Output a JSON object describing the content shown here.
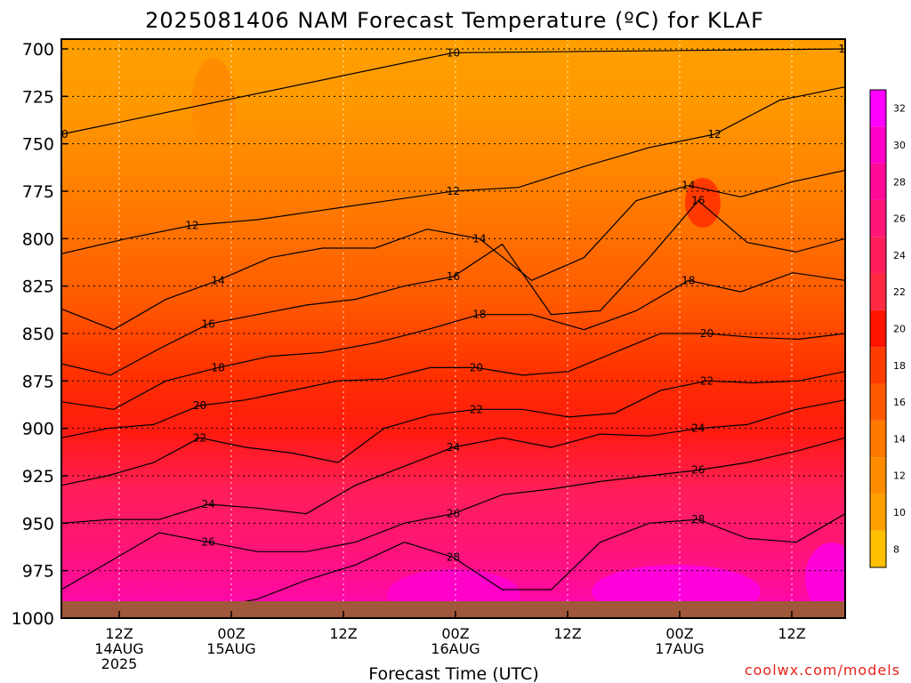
{
  "chart_data": {
    "type": "heatmap",
    "title": "2025081406 NAM Forecast Temperature (ºC) for KLAF",
    "xlabel": "Forecast Time (UTC)",
    "ylabel": "",
    "yaxis": {
      "scale": "pressure",
      "units": "hPa",
      "range": [
        1000,
        700
      ],
      "reversed": true,
      "ticks": [
        "700",
        "725",
        "750",
        "775",
        "800",
        "825",
        "850",
        "875",
        "900",
        "925",
        "950",
        "975",
        "1000"
      ]
    },
    "xaxis": {
      "range": [
        "2025-08-14 06Z",
        "2025-08-17 21Z"
      ],
      "ticks": [
        {
          "hour": "12Z",
          "date": "14AUG",
          "year": "2025"
        },
        {
          "hour": "00Z",
          "date": "15AUG",
          "year": ""
        },
        {
          "hour": "12Z",
          "date": "",
          "year": ""
        },
        {
          "hour": "00Z",
          "date": "16AUG",
          "year": ""
        },
        {
          "hour": "12Z",
          "date": "",
          "year": ""
        },
        {
          "hour": "00Z",
          "date": "17AUG",
          "year": ""
        },
        {
          "hour": "12Z",
          "date": "",
          "year": ""
        }
      ]
    },
    "grid": true,
    "colorbar": {
      "placement": "right",
      "levels": [
        "8",
        "10",
        "12",
        "14",
        "16",
        "18",
        "20",
        "22",
        "24",
        "26",
        "28",
        "30",
        "32"
      ],
      "colors": [
        "#ffc000",
        "#ffa000",
        "#ff8c00",
        "#ff7800",
        "#ff5a00",
        "#ff3c00",
        "#ff1400",
        "#ff2840",
        "#ff1e5a",
        "#ff1478",
        "#ff0a96",
        "#ff00c8",
        "#ff00ff"
      ]
    },
    "isotherms": [
      {
        "label": "10",
        "pressure": [
          745,
          702,
          700
        ]
      },
      {
        "label": "12",
        "pressure": [
          808,
          800,
          793,
          790,
          785,
          780,
          775,
          773,
          762,
          752,
          745,
          727,
          720
        ]
      },
      {
        "label": "14",
        "pressure": [
          837,
          848,
          832,
          822,
          810,
          805,
          805,
          795,
          800,
          822,
          810,
          780,
          772,
          778,
          770,
          764
        ]
      },
      {
        "label": "16",
        "pressure": [
          866,
          872,
          858,
          845,
          840,
          835,
          832,
          825,
          820,
          803,
          840,
          838,
          810,
          780,
          802,
          807,
          800
        ]
      },
      {
        "label": "18",
        "pressure": [
          886,
          890,
          875,
          868,
          862,
          860,
          855,
          848,
          840,
          840,
          848,
          838,
          822,
          828,
          818,
          822
        ]
      },
      {
        "label": "20",
        "pressure": [
          905,
          900,
          898,
          888,
          885,
          880,
          875,
          874,
          868,
          868,
          872,
          870,
          860,
          850,
          850,
          852,
          853,
          850
        ]
      },
      {
        "label": "22",
        "pressure": [
          930,
          925,
          918,
          905,
          910,
          913,
          918,
          900,
          893,
          890,
          890,
          894,
          892,
          880,
          875,
          876,
          875,
          870
        ]
      },
      {
        "label": "24",
        "pressure": [
          950,
          948,
          948,
          940,
          942,
          945,
          930,
          920,
          910,
          905,
          910,
          903,
          904,
          900,
          898,
          890,
          885
        ]
      },
      {
        "label": "26",
        "pressure": [
          985,
          970,
          955,
          960,
          965,
          965,
          960,
          950,
          945,
          935,
          932,
          928,
          925,
          922,
          918,
          912,
          905
        ]
      },
      {
        "label": "28",
        "pressure": [
          1000,
          995,
          995,
          995,
          990,
          980,
          972,
          960,
          968,
          985,
          985,
          960,
          950,
          948,
          958,
          960,
          945
        ]
      }
    ]
  },
  "credit": "coolwx.com/models"
}
